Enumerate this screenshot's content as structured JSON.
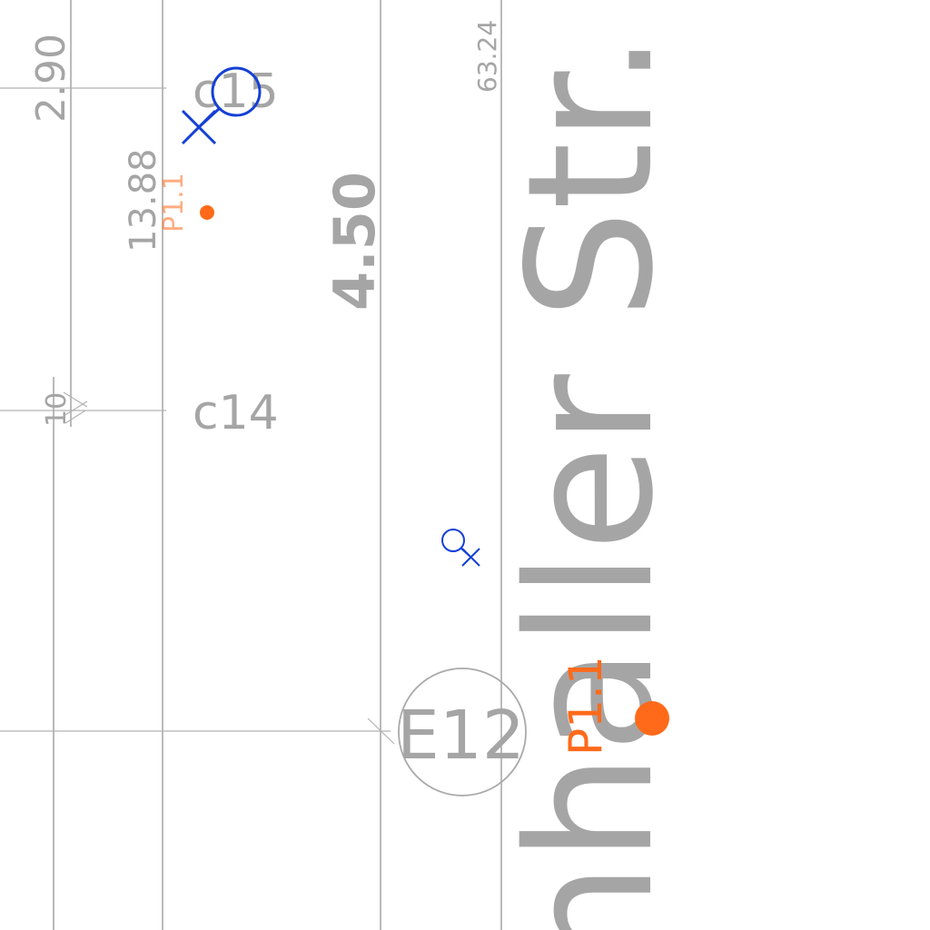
{
  "map": {
    "street_name": "nhaller Str.",
    "dimensions": {
      "d1": "2.90",
      "d2": "13.88",
      "d3": "4.50",
      "d4": "63.24",
      "d5": "10"
    },
    "parcels": {
      "c15": "c15",
      "c14": "c14",
      "e12": "E12"
    },
    "points": {
      "p1": "P1.1",
      "p2": "P1.1"
    },
    "colors": {
      "lines": "#a9a9a9",
      "labels": "#a5a5a5",
      "point": "#ff6a1a",
      "symbol": "#1440d6"
    },
    "icons": [
      "tree-symbol-icon",
      "survey-point-icon"
    ]
  }
}
